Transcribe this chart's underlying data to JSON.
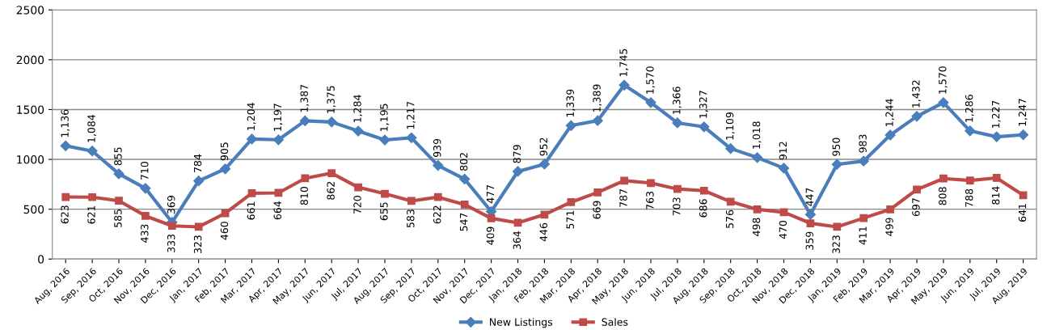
{
  "chart_data": {
    "type": "line",
    "categories": [
      "Aug, 2016",
      "Sep, 2016",
      "Oct, 2016",
      "Nov, 2016",
      "Dec, 2016",
      "Jan, 2017",
      "Feb, 2017",
      "Mar, 2017",
      "Apr, 2017",
      "May, 2017",
      "Jun, 2017",
      "Jul, 2017",
      "Aug, 2017",
      "Sep, 2017",
      "Oct, 2017",
      "Nov, 2017",
      "Dec, 2017",
      "Jan, 2018",
      "Feb, 2018",
      "Mar, 2018",
      "Apr, 2018",
      "May, 2018",
      "Jun, 2018",
      "Jul, 2018",
      "Aug, 2018",
      "Sep, 2018",
      "Oct, 2018",
      "Nov, 2018",
      "Dec, 2018",
      "Jan, 2019",
      "Feb, 2019",
      "Mar, 2019",
      "Apr, 2019",
      "May, 2019",
      "Jun, 2019",
      "Jul, 2019",
      "Aug, 2019"
    ],
    "series": [
      {
        "name": "New Listings",
        "color": "#4a7ebb",
        "marker": "diamond",
        "values": [
          1136,
          1084,
          855,
          710,
          369,
          784,
          905,
          1204,
          1197,
          1387,
          1375,
          1284,
          1195,
          1217,
          939,
          802,
          477,
          879,
          952,
          1339,
          1389,
          1745,
          1570,
          1366,
          1327,
          1109,
          1018,
          912,
          447,
          950,
          983,
          1244,
          1432,
          1570,
          1286,
          1227,
          1247
        ],
        "value_labels": [
          "1,136",
          "1,084",
          "855",
          "710",
          "369",
          "784",
          "905",
          "1,204",
          "1,197",
          "1,387",
          "1,375",
          "1,284",
          "1,195",
          "1,217",
          "939",
          "802",
          "477",
          "879",
          "952",
          "1,339",
          "1,389",
          "1,745",
          "1,570",
          "1,366",
          "1,327",
          "1,109",
          "1,018",
          "912",
          "447",
          "950",
          "983",
          "1,244",
          "1,432",
          "1,570",
          "1,286",
          "1,227",
          "1,247"
        ]
      },
      {
        "name": "Sales",
        "color": "#be4b48",
        "marker": "square",
        "values": [
          623,
          621,
          585,
          433,
          333,
          323,
          460,
          661,
          664,
          810,
          862,
          720,
          655,
          583,
          622,
          547,
          409,
          364,
          446,
          571,
          669,
          787,
          763,
          703,
          686,
          576,
          498,
          470,
          359,
          323,
          411,
          499,
          697,
          808,
          788,
          814,
          641
        ],
        "value_labels": [
          "623",
          "621",
          "585",
          "433",
          "333",
          "323",
          "460",
          "661",
          "664",
          "810",
          "862",
          "720",
          "655",
          "583",
          "622",
          "547",
          "409",
          "364",
          "446",
          "571",
          "669",
          "787",
          "763",
          "703",
          "686",
          "576",
          "498",
          "470",
          "359",
          "323",
          "411",
          "499",
          "697",
          "808",
          "788",
          "814",
          "641"
        ]
      }
    ],
    "ylim": [
      0,
      2500
    ],
    "yticks": [
      0,
      500,
      1000,
      1500,
      2000,
      2500
    ],
    "grid": "y",
    "legend": "bottom",
    "line_style": "solid"
  }
}
